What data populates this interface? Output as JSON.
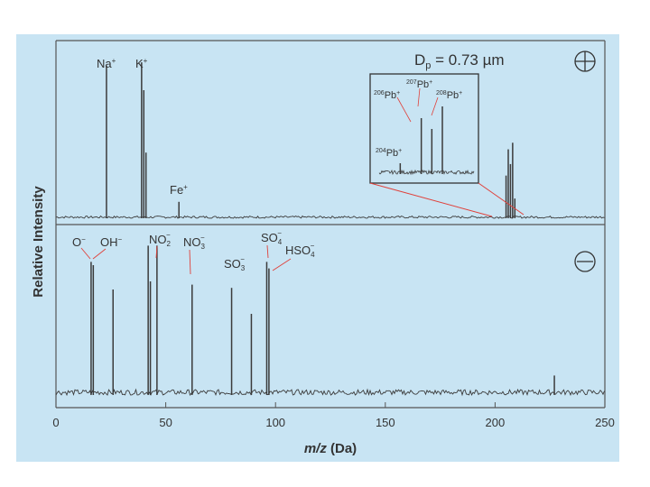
{
  "chart_data": {
    "type": "line",
    "xlabel": "m/z (Da)",
    "ylabel": "Relative Intensity",
    "xlim": [
      0,
      250
    ],
    "x_ticks": [
      "0",
      "50",
      "100",
      "150",
      "200",
      "250"
    ],
    "grid": false,
    "panels": [
      {
        "name": "positive",
        "polarity_symbol": "+",
        "annotation": "Dp = 0.73 µm",
        "ylim": [
          0,
          1
        ],
        "peaks": [
          {
            "x": 23,
            "y": 0.93,
            "label": "Na+"
          },
          {
            "x": 39,
            "y": 0.95,
            "label": "K+"
          },
          {
            "x": 40,
            "y": 0.78
          },
          {
            "x": 41,
            "y": 0.4
          },
          {
            "x": 56,
            "y": 0.1,
            "label": "Fe+"
          },
          {
            "x": 205,
            "y": 0.26
          },
          {
            "x": 206,
            "y": 0.42
          },
          {
            "x": 207,
            "y": 0.33
          },
          {
            "x": 208,
            "y": 0.46
          },
          {
            "x": 209,
            "y": 0.12
          }
        ],
        "inset": {
          "labels": [
            "204Pb+",
            "206Pb+",
            "207Pb+",
            "208Pb+"
          ],
          "peaks": [
            {
              "x": 204,
              "y": 0.12
            },
            {
              "x": 206,
              "y": 0.62
            },
            {
              "x": 207,
              "y": 0.5
            },
            {
              "x": 208,
              "y": 0.75
            }
          ]
        }
      },
      {
        "name": "negative",
        "polarity_symbol": "−",
        "ylim": [
          0,
          1
        ],
        "peaks": [
          {
            "x": 16,
            "y": 0.82,
            "label": "O−"
          },
          {
            "x": 17,
            "y": 0.8,
            "label": "OH−"
          },
          {
            "x": 26,
            "y": 0.65
          },
          {
            "x": 42,
            "y": 0.92
          },
          {
            "x": 43,
            "y": 0.7
          },
          {
            "x": 46,
            "y": 0.92,
            "label": "NO2−"
          },
          {
            "x": 62,
            "y": 0.68,
            "label": "NO3−"
          },
          {
            "x": 80,
            "y": 0.66,
            "label": "SO3−"
          },
          {
            "x": 89,
            "y": 0.5
          },
          {
            "x": 96,
            "y": 0.82,
            "label": "SO4−"
          },
          {
            "x": 97,
            "y": 0.78,
            "label": "HSO4−"
          },
          {
            "x": 227,
            "y": 0.12
          }
        ]
      }
    ]
  },
  "labels": {
    "xlabel_italic": "m/z",
    "xlabel_unit": " (Da)",
    "ylabel": "Relative Intensity",
    "dp_text": "D",
    "dp_sub": "p",
    "dp_value": " = 0.73 µm",
    "pos": {
      "na": "Na",
      "na_sup": "+",
      "k": "K",
      "k_sup": "+",
      "fe": "Fe",
      "fe_sup": "+"
    },
    "inset": {
      "pb206_iso": "206",
      "pb206": "Pb",
      "pb206_sup": "+",
      "pb207_iso": "207",
      "pb207": "Pb",
      "pb207_sup": "+",
      "pb208_iso": "208",
      "pb208": "Pb",
      "pb208_sup": "+",
      "pb204_iso": "204",
      "pb204": "Pb",
      "pb204_sup": "+"
    },
    "neg": {
      "o": "O",
      "o_sup": "−",
      "oh": "OH",
      "oh_sup": "−",
      "no2": "NO",
      "no2_sub": "2",
      "no2_sup": "−",
      "no3": "NO",
      "no3_sub": "3",
      "no3_sup": "−",
      "so3": "SO",
      "so3_sub": "3",
      "so3_sup": "−",
      "so4": "SO",
      "so4_sub": "4",
      "so4_sup": "−",
      "hso4": "HSO",
      "hso4_sub": "4",
      "hso4_sup": "−"
    }
  },
  "colors": {
    "background": "#c8e4f3",
    "trace": "#3b3b3b",
    "axis": "#555555",
    "leader": "#e0403a"
  }
}
